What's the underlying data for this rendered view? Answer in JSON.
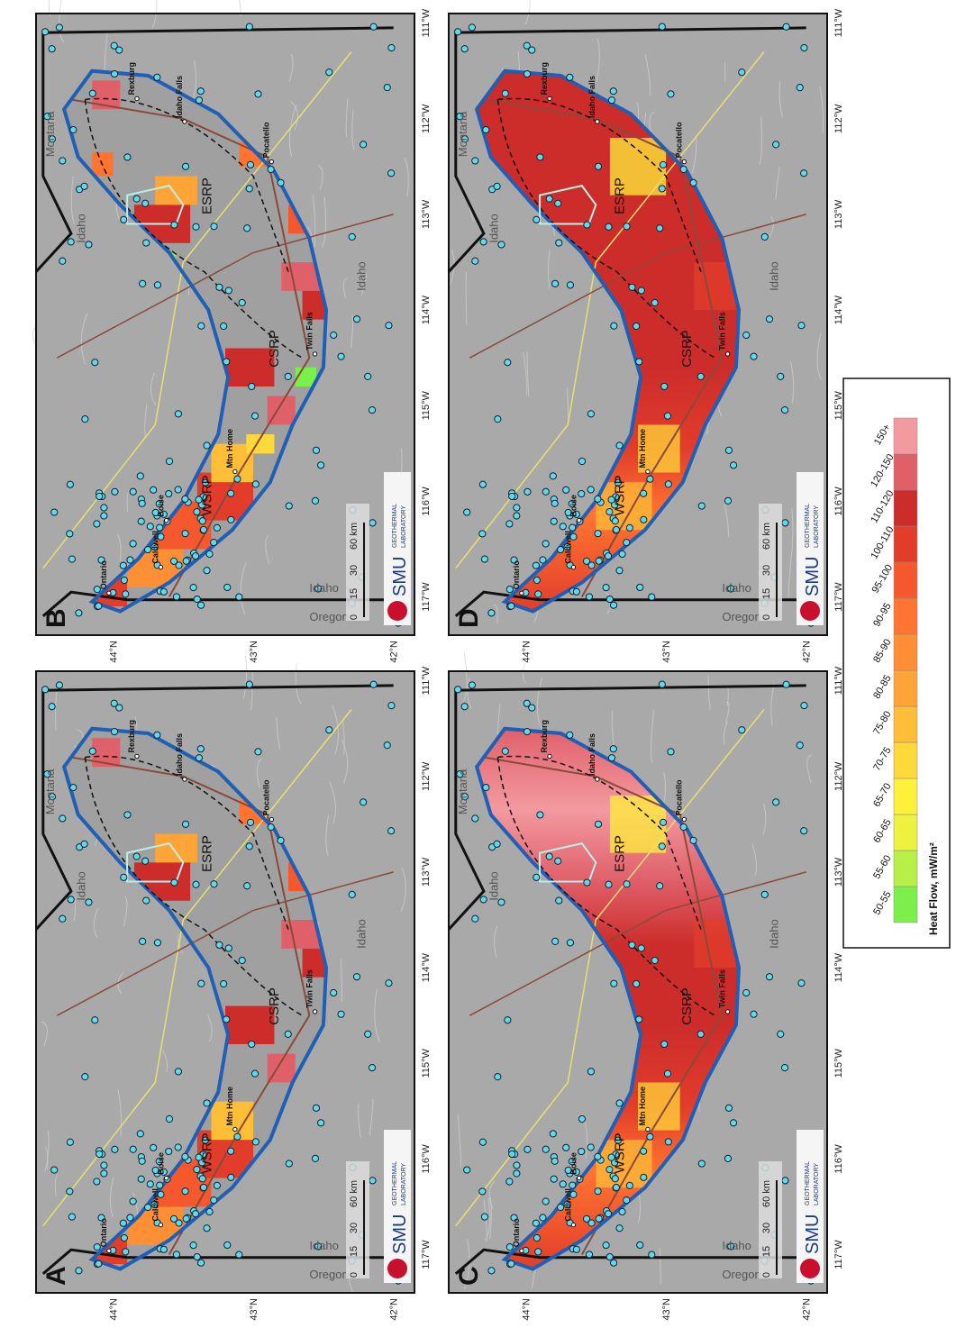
{
  "panels": [
    {
      "letter": "A"
    },
    {
      "letter": "B"
    },
    {
      "letter": "C"
    },
    {
      "letter": "D"
    }
  ],
  "longitude_labels": [
    "117°W",
    "116°W",
    "115°W",
    "114°W",
    "113°W",
    "112°W",
    "111°W"
  ],
  "latitude_labels": [
    "44°N",
    "43°N",
    "42°N"
  ],
  "places": {
    "states": [
      "Montana",
      "Idaho",
      "Oregon",
      "Idaho",
      "Idaho"
    ],
    "cities": [
      "Ontario",
      "Caldwell",
      "Boise",
      "Mtn Home",
      "Twin Falls",
      "Pocatello",
      "Idaho Falls",
      "Rexburg"
    ],
    "regions": [
      "ESRP",
      "CSRP",
      "WSRP"
    ]
  },
  "scale_bar": [
    "0",
    "15",
    "30",
    "60 km"
  ],
  "logo": {
    "name": "SMU",
    "subtitle": [
      "GEOTHERMAL",
      "LABORATORY"
    ]
  },
  "legend": {
    "title": "Heat Flow, mW/m²",
    "classes": [
      {
        "label": "50-55",
        "color": "#7cf04a"
      },
      {
        "label": "55-60",
        "color": "#b8f046"
      },
      {
        "label": "60-65",
        "color": "#eef23e"
      },
      {
        "label": "65-70",
        "color": "#fff03a"
      },
      {
        "label": "70-75",
        "color": "#ffd83a"
      },
      {
        "label": "75-80",
        "color": "#ffbe38"
      },
      {
        "label": "80-85",
        "color": "#ffa537"
      },
      {
        "label": "85-90",
        "color": "#ff8f35"
      },
      {
        "label": "90-95",
        "color": "#ff7431"
      },
      {
        "label": "95-100",
        "color": "#f5582d"
      },
      {
        "label": "100-110",
        "color": "#e23d2b"
      },
      {
        "label": "110-120",
        "color": "#cc2d2b"
      },
      {
        "label": "120-150",
        "color": "#e0606a"
      },
      {
        "label": "150+",
        "color": "#f39aa0"
      }
    ]
  }
}
